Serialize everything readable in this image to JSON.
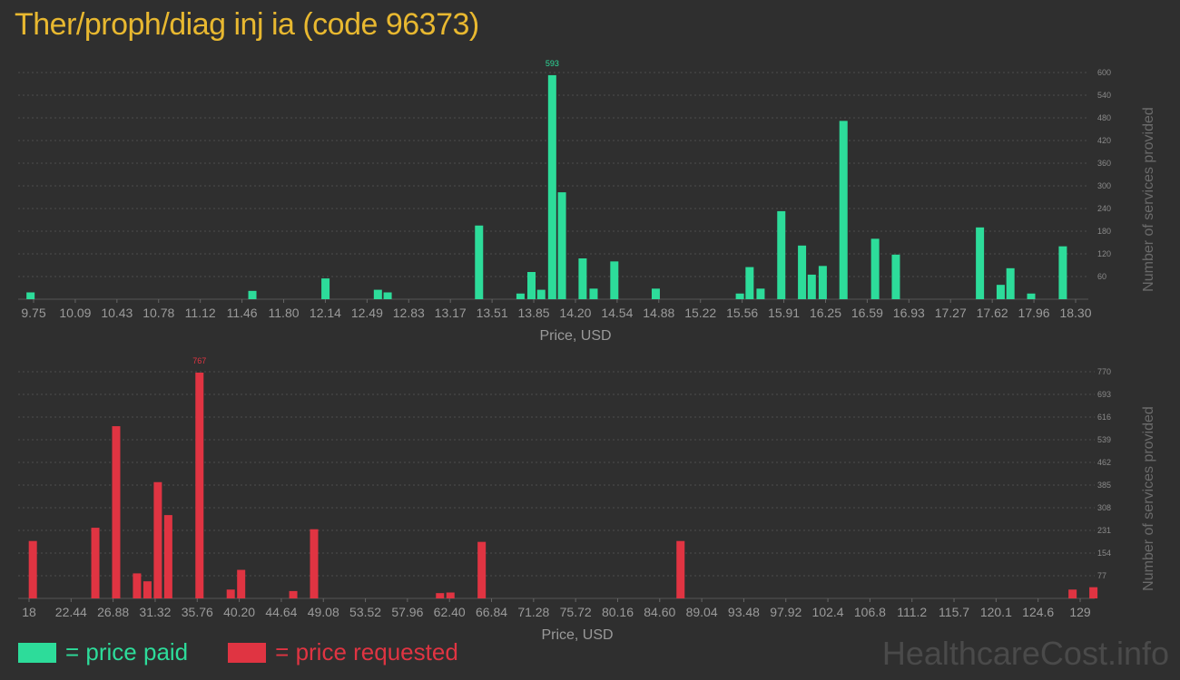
{
  "title": "Ther/proph/diag inj ia (code 96373)",
  "legend": {
    "paid": {
      "label": "= price paid",
      "color": "#2ddc9a"
    },
    "requested": {
      "label": "= price requested",
      "color": "#e03442"
    }
  },
  "watermark": "HealthcareCost.info",
  "chart_data": [
    {
      "type": "bar",
      "name": "price paid",
      "color": "#2ddc9a",
      "xlabel": "Price, USD",
      "ylabel": "Number of services provided",
      "xlim": [
        9.75,
        18.3
      ],
      "ylim": [
        0,
        600
      ],
      "x_ticks": [
        "9.75",
        "10.09",
        "10.43",
        "10.78",
        "11.12",
        "11.46",
        "11.80",
        "12.14",
        "12.49",
        "12.83",
        "13.17",
        "13.51",
        "13.85",
        "14.20",
        "14.54",
        "14.88",
        "15.22",
        "15.56",
        "15.91",
        "16.25",
        "16.59",
        "16.93",
        "17.27",
        "17.62",
        "17.96",
        "18.30"
      ],
      "y_ticks": [
        60,
        120,
        180,
        240,
        300,
        360,
        420,
        480,
        540,
        600
      ],
      "max_label": "593",
      "max_value": 593,
      "bars": [
        {
          "x": 9.74,
          "y": 18
        },
        {
          "x": 11.56,
          "y": 22
        },
        {
          "x": 12.16,
          "y": 55
        },
        {
          "x": 12.59,
          "y": 25
        },
        {
          "x": 12.67,
          "y": 18
        },
        {
          "x": 13.42,
          "y": 195
        },
        {
          "x": 13.76,
          "y": 15
        },
        {
          "x": 13.85,
          "y": 72
        },
        {
          "x": 13.93,
          "y": 25
        },
        {
          "x": 14.02,
          "y": 593
        },
        {
          "x": 14.1,
          "y": 283
        },
        {
          "x": 14.27,
          "y": 108
        },
        {
          "x": 14.36,
          "y": 28
        },
        {
          "x": 14.53,
          "y": 100
        },
        {
          "x": 14.87,
          "y": 28
        },
        {
          "x": 15.56,
          "y": 15
        },
        {
          "x": 15.64,
          "y": 85
        },
        {
          "x": 15.73,
          "y": 28
        },
        {
          "x": 15.9,
          "y": 233
        },
        {
          "x": 16.07,
          "y": 142
        },
        {
          "x": 16.15,
          "y": 65
        },
        {
          "x": 16.24,
          "y": 88
        },
        {
          "x": 16.41,
          "y": 472
        },
        {
          "x": 16.67,
          "y": 160
        },
        {
          "x": 16.84,
          "y": 118
        },
        {
          "x": 17.53,
          "y": 190
        },
        {
          "x": 17.7,
          "y": 38
        },
        {
          "x": 17.78,
          "y": 82
        },
        {
          "x": 17.95,
          "y": 15
        },
        {
          "x": 18.21,
          "y": 140
        }
      ]
    },
    {
      "type": "bar",
      "name": "price requested",
      "color": "#e03442",
      "xlabel": "Price, USD",
      "ylabel": "Number of services provided",
      "xlim": [
        18,
        129
      ],
      "ylim": [
        0,
        770
      ],
      "x_ticks": [
        "18",
        "22.44",
        "26.88",
        "31.32",
        "35.76",
        "40.20",
        "44.64",
        "49.08",
        "53.52",
        "57.96",
        "62.40",
        "66.84",
        "71.28",
        "75.72",
        "80.16",
        "84.60",
        "89.04",
        "93.48",
        "97.92",
        "102.4",
        "106.8",
        "111.2",
        "115.7",
        "120.1",
        "124.6",
        "129"
      ],
      "y_ticks": [
        77,
        154,
        231,
        308,
        385,
        462,
        539,
        616,
        693,
        770
      ],
      "max_label": "767",
      "max_value": 767,
      "bars": [
        {
          "x": 18.4,
          "y": 195
        },
        {
          "x": 25.0,
          "y": 240
        },
        {
          "x": 27.2,
          "y": 585
        },
        {
          "x": 29.4,
          "y": 85
        },
        {
          "x": 30.5,
          "y": 58
        },
        {
          "x": 31.6,
          "y": 395
        },
        {
          "x": 32.7,
          "y": 283
        },
        {
          "x": 36.0,
          "y": 767
        },
        {
          "x": 39.3,
          "y": 30
        },
        {
          "x": 40.4,
          "y": 97
        },
        {
          "x": 48.1,
          "y": 235
        },
        {
          "x": 45.9,
          "y": 25
        },
        {
          "x": 61.4,
          "y": 18
        },
        {
          "x": 62.5,
          "y": 20
        },
        {
          "x": 65.8,
          "y": 192
        },
        {
          "x": 86.8,
          "y": 195
        },
        {
          "x": 128.2,
          "y": 30
        },
        {
          "x": 130.4,
          "y": 38
        }
      ]
    }
  ]
}
